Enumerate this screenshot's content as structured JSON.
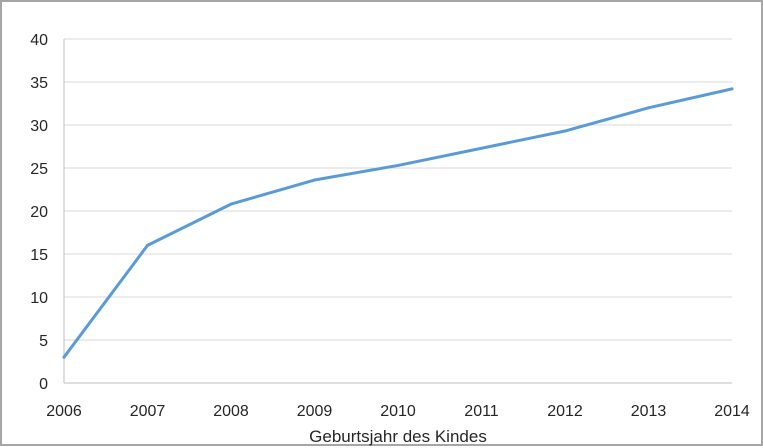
{
  "chart_data": {
    "type": "line",
    "title": "",
    "xlabel": "Geburtsjahr des Kindes",
    "ylabel": "",
    "x": [
      2006,
      2007,
      2008,
      2009,
      2010,
      2011,
      2012,
      2013,
      2014
    ],
    "series": [
      {
        "values": [
          3.0,
          16.0,
          20.8,
          23.6,
          25.3,
          27.3,
          29.3,
          32.0,
          34.2
        ],
        "color": "#5b9bd5"
      }
    ],
    "xlim": [
      2006,
      2014
    ],
    "ylim": [
      0,
      40
    ],
    "yticks": [
      0,
      5,
      10,
      15,
      20,
      25,
      30,
      35,
      40
    ],
    "xticks": [
      2006,
      2007,
      2008,
      2009,
      2010,
      2011,
      2012,
      2013,
      2014
    ],
    "grid": true,
    "gridColor": "#d9d9d9",
    "legend": "none"
  }
}
